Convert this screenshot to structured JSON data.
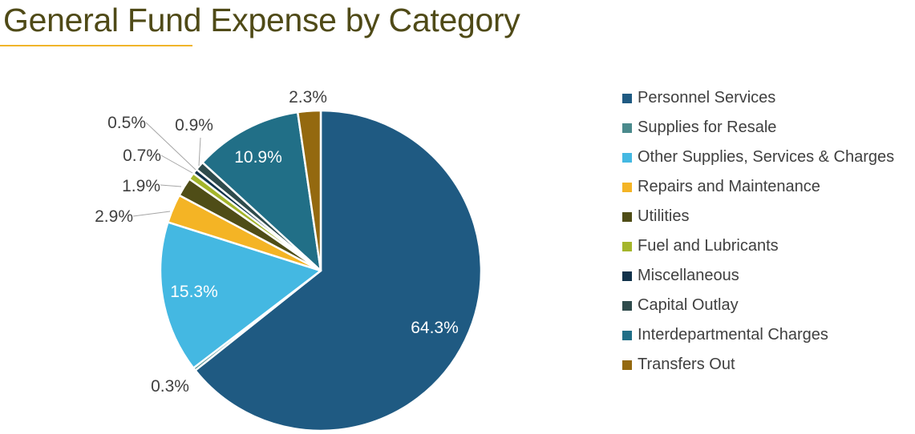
{
  "chart_data": {
    "type": "pie",
    "title": "General Fund Expense by Category",
    "start_angle_deg": 0,
    "direction": "clockwise",
    "legend_position": "right",
    "slices": [
      {
        "name": "Personnel Services",
        "value": 64.3,
        "label": "64.3%",
        "color": "#1f5a82",
        "label_inside": true
      },
      {
        "name": "Supplies for Resale",
        "value": 0.3,
        "label": "0.3%",
        "color": "#4a8a8c",
        "label_inside": false
      },
      {
        "name": "Other Supplies, Services & Charges",
        "value": 15.3,
        "label": "15.3%",
        "color": "#44b8e2",
        "label_inside": true
      },
      {
        "name": "Repairs and Maintenance",
        "value": 2.9,
        "label": "2.9%",
        "color": "#f4b425",
        "label_inside": false
      },
      {
        "name": "Utilities",
        "value": 1.9,
        "label": "1.9%",
        "color": "#4f4d17",
        "label_inside": false
      },
      {
        "name": "Fuel and Lubricants",
        "value": 0.7,
        "label": "0.7%",
        "color": "#a4b52b",
        "label_inside": false
      },
      {
        "name": "Miscellaneous",
        "value": 0.5,
        "label": "0.5%",
        "color": "#11324a",
        "label_inside": false
      },
      {
        "name": "Capital Outlay",
        "value": 0.9,
        "label": "0.9%",
        "color": "#2f4b4c",
        "label_inside": false
      },
      {
        "name": "Interdepartmental Charges",
        "value": 10.9,
        "label": "10.9%",
        "color": "#216f87",
        "label_inside": true
      },
      {
        "name": "Transfers Out",
        "value": 2.3,
        "label": "2.3%",
        "color": "#94690f",
        "label_inside": false
      }
    ]
  }
}
